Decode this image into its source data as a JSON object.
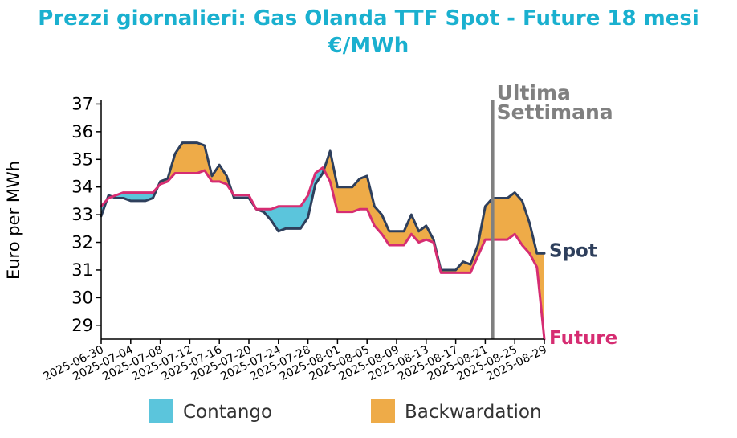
{
  "chart_data": {
    "type": "line",
    "title": "Prezzi giornalieri: Gas Olanda TTF Spot - Future 18 mesi",
    "subtitle": "€/MWh",
    "ylabel": "Euro per MWh",
    "xlabel": "",
    "ylim": [
      28.5,
      37.1
    ],
    "yticks": [
      29,
      30,
      31,
      32,
      33,
      34,
      35,
      36,
      37
    ],
    "xlim": [
      "2025-06-30",
      "2025-08-29"
    ],
    "xticks": [
      "2025-06-30",
      "2025-07-04",
      "2025-07-08",
      "2025-07-12",
      "2025-07-16",
      "2025-07-20",
      "2025-07-24",
      "2025-07-28",
      "2025-08-01",
      "2025-08-05",
      "2025-08-09",
      "2025-08-13",
      "2025-08-17",
      "2025-08-21",
      "2025-08-25",
      "2025-08-29"
    ],
    "dates": [
      "2025-06-30",
      "2025-07-01",
      "2025-07-02",
      "2025-07-03",
      "2025-07-04",
      "2025-07-05",
      "2025-07-06",
      "2025-07-07",
      "2025-07-08",
      "2025-07-09",
      "2025-07-10",
      "2025-07-11",
      "2025-07-12",
      "2025-07-13",
      "2025-07-14",
      "2025-07-15",
      "2025-07-16",
      "2025-07-17",
      "2025-07-18",
      "2025-07-19",
      "2025-07-20",
      "2025-07-21",
      "2025-07-22",
      "2025-07-23",
      "2025-07-24",
      "2025-07-25",
      "2025-07-26",
      "2025-07-27",
      "2025-07-28",
      "2025-07-29",
      "2025-07-30",
      "2025-07-31",
      "2025-08-01",
      "2025-08-02",
      "2025-08-03",
      "2025-08-04",
      "2025-08-05",
      "2025-08-06",
      "2025-08-07",
      "2025-08-08",
      "2025-08-09",
      "2025-08-10",
      "2025-08-11",
      "2025-08-12",
      "2025-08-13",
      "2025-08-14",
      "2025-08-15",
      "2025-08-16",
      "2025-08-17",
      "2025-08-18",
      "2025-08-19",
      "2025-08-20",
      "2025-08-21",
      "2025-08-22",
      "2025-08-23",
      "2025-08-24",
      "2025-08-25",
      "2025-08-26",
      "2025-08-27",
      "2025-08-28",
      "2025-08-29"
    ],
    "series": [
      {
        "name": "Spot",
        "color": "#2e3f5c",
        "values": [
          32.95,
          33.7,
          33.6,
          33.6,
          33.5,
          33.5,
          33.5,
          33.6,
          34.2,
          34.3,
          35.2,
          35.6,
          35.6,
          35.6,
          35.5,
          34.4,
          34.8,
          34.4,
          33.6,
          33.6,
          33.6,
          33.2,
          33.1,
          32.8,
          32.4,
          32.5,
          32.5,
          32.5,
          32.9,
          34.1,
          34.5,
          35.3,
          34.0,
          34.0,
          34.0,
          34.3,
          34.4,
          33.3,
          33.0,
          32.4,
          32.4,
          32.4,
          33.0,
          32.4,
          32.6,
          32.1,
          31.0,
          31.0,
          31.0,
          31.3,
          31.2,
          31.9,
          33.3,
          33.6,
          33.6,
          33.6,
          33.8,
          33.5,
          32.7,
          31.6,
          31.6
        ]
      },
      {
        "name": "Future",
        "color": "#d62d72",
        "values": [
          33.3,
          33.6,
          33.7,
          33.8,
          33.8,
          33.8,
          33.8,
          33.8,
          34.1,
          34.2,
          34.5,
          34.5,
          34.5,
          34.5,
          34.6,
          34.2,
          34.2,
          34.1,
          33.7,
          33.7,
          33.7,
          33.2,
          33.2,
          33.2,
          33.3,
          33.3,
          33.3,
          33.3,
          33.7,
          34.5,
          34.7,
          34.2,
          33.1,
          33.1,
          33.1,
          33.2,
          33.2,
          32.6,
          32.3,
          31.9,
          31.9,
          31.9,
          32.3,
          32.0,
          32.1,
          32.0,
          30.9,
          30.9,
          30.9,
          30.9,
          30.9,
          31.5,
          32.1,
          32.1,
          32.1,
          32.1,
          32.3,
          31.9,
          31.6,
          31.1,
          28.5
        ]
      }
    ],
    "areas": [
      {
        "name": "Contango",
        "color": "#5bc5dc"
      },
      {
        "name": "Backwardation",
        "color": "#eeab48"
      }
    ],
    "legend": "bottom",
    "grid": false,
    "annotation": {
      "text_line1": "Ultima",
      "text_line2": "Settimana",
      "date": "2025-08-22",
      "color": "#808080"
    },
    "title_color": "#1ab0cf",
    "end_labels": [
      "Spot",
      "Future"
    ]
  }
}
